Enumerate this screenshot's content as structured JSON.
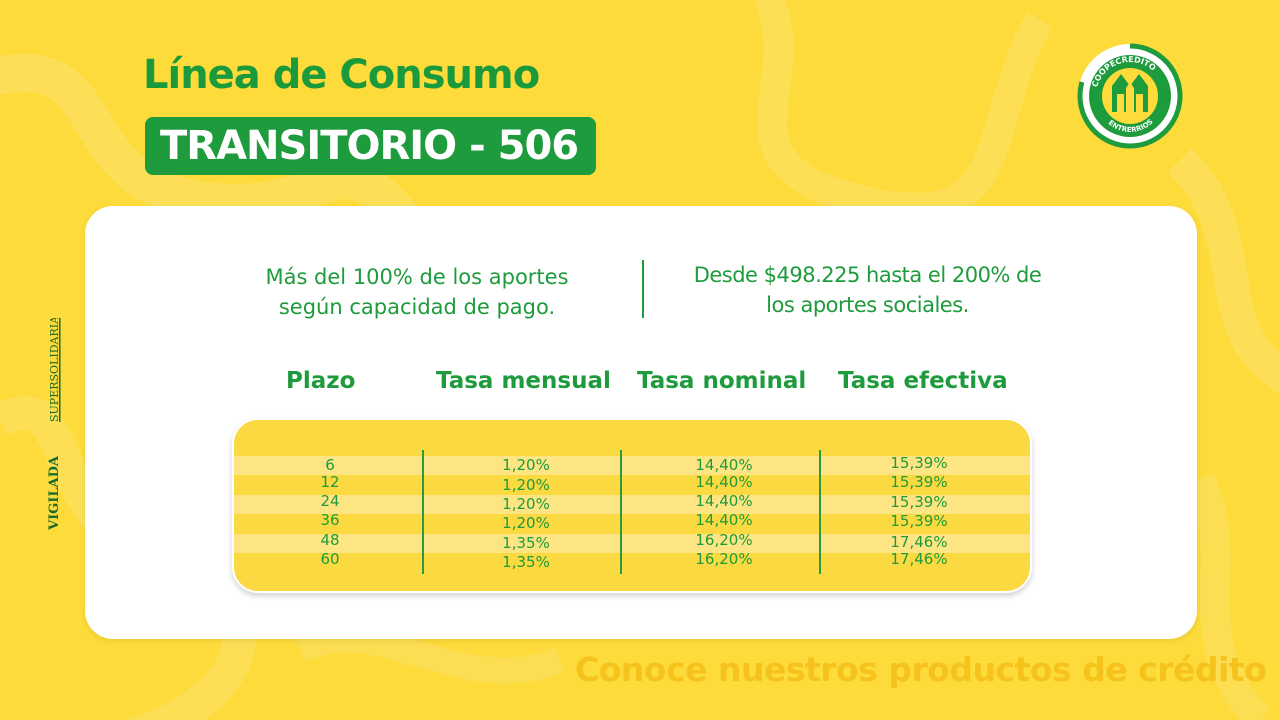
{
  "header": {
    "title": "Línea de Consumo",
    "subtitle": "TRANSITORIO - 506"
  },
  "logo": {
    "ring_text_top": "COOPECREDITO",
    "ring_text_bottom": "ENTRERRIOS",
    "icon": "coopecredito-logo-icon"
  },
  "side_badge": {
    "left_text": "VIGILADA",
    "right_text": "SUPERSOLIDARIA"
  },
  "info": {
    "left_line1": "Más del 100% de los aportes",
    "left_line2": "según capacidad de pago.",
    "right_line1": "Desde $498.225 hasta el 200% de",
    "right_line2": "los aportes sociales."
  },
  "table": {
    "headers": [
      "Plazo",
      "Tasa mensual",
      "Tasa nominal",
      "Tasa efectiva"
    ],
    "rows": [
      [
        "6",
        "1,20%",
        "14,40%",
        "15,39%"
      ],
      [
        "12",
        "1,20%",
        "14,40%",
        "15,39%"
      ],
      [
        "24",
        "1,20%",
        "14,40%",
        "15,39%"
      ],
      [
        "36",
        "1,20%",
        "14,40%",
        "15,39%"
      ],
      [
        "48",
        "1,35%",
        "16,20%",
        "17,46%"
      ],
      [
        "60",
        "1,35%",
        "16,20%",
        "17,46%"
      ]
    ]
  },
  "footer": {
    "text": "Conoce nuestros productos de crédito"
  },
  "colors": {
    "background": "#fddb3a",
    "brand_green": "#1e9b3c",
    "footer_yellow": "#f6c21c"
  }
}
